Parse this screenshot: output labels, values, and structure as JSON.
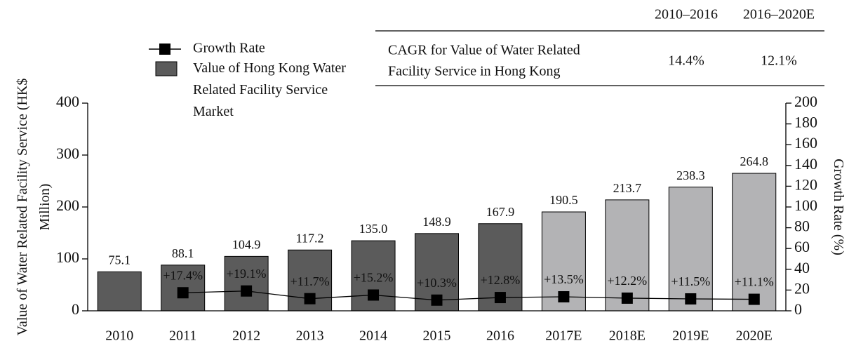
{
  "chart_data": {
    "type": "bar_line",
    "categories": [
      "2010",
      "2011",
      "2012",
      "2013",
      "2014",
      "2015",
      "2016",
      "2017E",
      "2018E",
      "2019E",
      "2020E"
    ],
    "series": [
      {
        "name": "Growth Rate",
        "type": "line",
        "axis": "y2",
        "color": "#000000",
        "values": [
          null,
          17.4,
          19.1,
          11.7,
          15.2,
          10.3,
          12.8,
          13.5,
          12.2,
          11.5,
          11.1
        ],
        "value_labels": [
          null,
          "+17.4%",
          "+19.1%",
          "+11.7%",
          "+15.2%",
          "+10.3%",
          "+12.8%",
          "+13.5%",
          "+12.2%",
          "+11.5%",
          "+11.1%"
        ]
      },
      {
        "name": "Value of Hong Kong Water Related Facility Service Market",
        "type": "bar",
        "color": "#5b5b5b",
        "colors": [
          "#5b5b5b",
          "#5b5b5b",
          "#5b5b5b",
          "#5b5b5b",
          "#5b5b5b",
          "#5b5b5b",
          "#5b5b5b",
          "#b3b3b5",
          "#b3b3b5",
          "#b3b3b5",
          "#b3b3b5"
        ],
        "values": [
          75.1,
          88.1,
          104.9,
          117.2,
          135.0,
          148.9,
          167.9,
          190.5,
          213.7,
          238.3,
          264.8
        ],
        "value_labels": [
          "75.1",
          "88.1",
          "104.9",
          "117.2",
          "135.0",
          "148.9",
          "167.9",
          "190.5",
          "213.7",
          "238.3",
          "264.8"
        ]
      }
    ],
    "ylabel": "Value of Water Related Facility Service (HK$ Million)",
    "y2label": "Growth Rate (%)",
    "ylim": [
      0,
      400
    ],
    "yticks": [
      0,
      100,
      200,
      300,
      400
    ],
    "y2lim": [
      0,
      200
    ],
    "y2ticks": [
      0,
      20,
      40,
      60,
      80,
      100,
      120,
      140,
      160,
      180,
      200
    ],
    "cagr_table": {
      "columns": [
        "2010–2016",
        "2016–2020E"
      ],
      "row_label": [
        "CAGR for Value of Water Related",
        "Facility Service in Hong Kong"
      ],
      "values": [
        "14.4%",
        "12.1%"
      ]
    }
  }
}
